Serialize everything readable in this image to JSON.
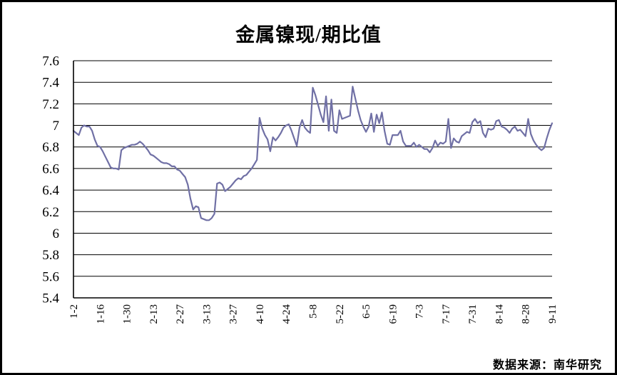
{
  "title": "金属镍现/期比值",
  "source_note": "数据来源：南华研究",
  "colors": {
    "line": "#7070A5",
    "axis": "#000000",
    "grid": "#000000"
  },
  "chart_data": {
    "type": "line",
    "title": "金属镍现/期比值",
    "xlabel": "",
    "ylabel": "",
    "ylim": [
      5.4,
      7.6
    ],
    "ytick_step": 0.2,
    "y_tick_labels": [
      "7.6",
      "7.4",
      "7.2",
      "7",
      "6.8",
      "6.6",
      "6.4",
      "6.2",
      "6",
      "5.8",
      "5.6",
      "5.4"
    ],
    "x_tick_labels": [
      "1-2",
      "1-16",
      "1-30",
      "2-13",
      "2-27",
      "3-13",
      "3-27",
      "4-10",
      "4-24",
      "5-8",
      "5-22",
      "6-5",
      "6-19",
      "7-3",
      "7-17",
      "7-31",
      "8-14",
      "8-28",
      "9-11"
    ],
    "points_per_tick": 10,
    "grid": true,
    "legend": "none",
    "line_color": "#7070A5",
    "values": [
      6.95,
      6.93,
      6.91,
      6.98,
      7.0,
      6.99,
      6.99,
      6.95,
      6.87,
      6.81,
      6.8,
      6.76,
      6.71,
      6.66,
      6.61,
      6.6,
      6.6,
      6.59,
      6.77,
      6.79,
      6.8,
      6.81,
      6.82,
      6.82,
      6.83,
      6.85,
      6.83,
      6.8,
      6.77,
      6.73,
      6.72,
      6.7,
      6.68,
      6.66,
      6.65,
      6.65,
      6.64,
      6.62,
      6.62,
      6.59,
      6.58,
      6.55,
      6.52,
      6.45,
      6.32,
      6.22,
      6.25,
      6.24,
      6.14,
      6.13,
      6.12,
      6.12,
      6.14,
      6.18,
      6.46,
      6.47,
      6.45,
      6.39,
      6.41,
      6.43,
      6.46,
      6.49,
      6.51,
      6.5,
      6.53,
      6.54,
      6.57,
      6.6,
      6.64,
      6.68,
      7.07,
      6.97,
      6.91,
      6.87,
      6.76,
      6.89,
      6.86,
      6.89,
      6.93,
      6.98,
      7.0,
      7.01,
      6.95,
      6.88,
      6.81,
      6.98,
      7.05,
      6.98,
      6.95,
      6.93,
      7.35,
      7.28,
      7.19,
      7.1,
      7.03,
      7.27,
      6.95,
      7.24,
      6.95,
      6.93,
      7.14,
      7.06,
      7.07,
      7.08,
      7.09,
      7.36,
      7.25,
      7.14,
      7.05,
      6.99,
      6.94,
      6.99,
      7.11,
      6.94,
      7.1,
      7.02,
      7.12,
      6.95,
      6.83,
      6.82,
      6.91,
      6.91,
      6.91,
      6.95,
      6.85,
      6.81,
      6.81,
      6.81,
      6.84,
      6.8,
      6.82,
      6.8,
      6.78,
      6.78,
      6.75,
      6.79,
      6.86,
      6.81,
      6.84,
      6.83,
      6.85,
      7.06,
      6.79,
      6.88,
      6.85,
      6.84,
      6.9,
      6.92,
      6.94,
      6.93,
      7.03,
      7.06,
      7.02,
      7.04,
      6.93,
      6.89,
      6.97,
      6.96,
      6.97,
      7.04,
      7.05,
      6.99,
      6.98,
      6.96,
      6.93,
      6.97,
      6.99,
      6.95,
      6.96,
      6.93,
      6.9,
      7.06,
      6.92,
      6.86,
      6.82,
      6.79,
      6.77,
      6.79,
      6.88,
      6.96,
      7.02
    ]
  }
}
